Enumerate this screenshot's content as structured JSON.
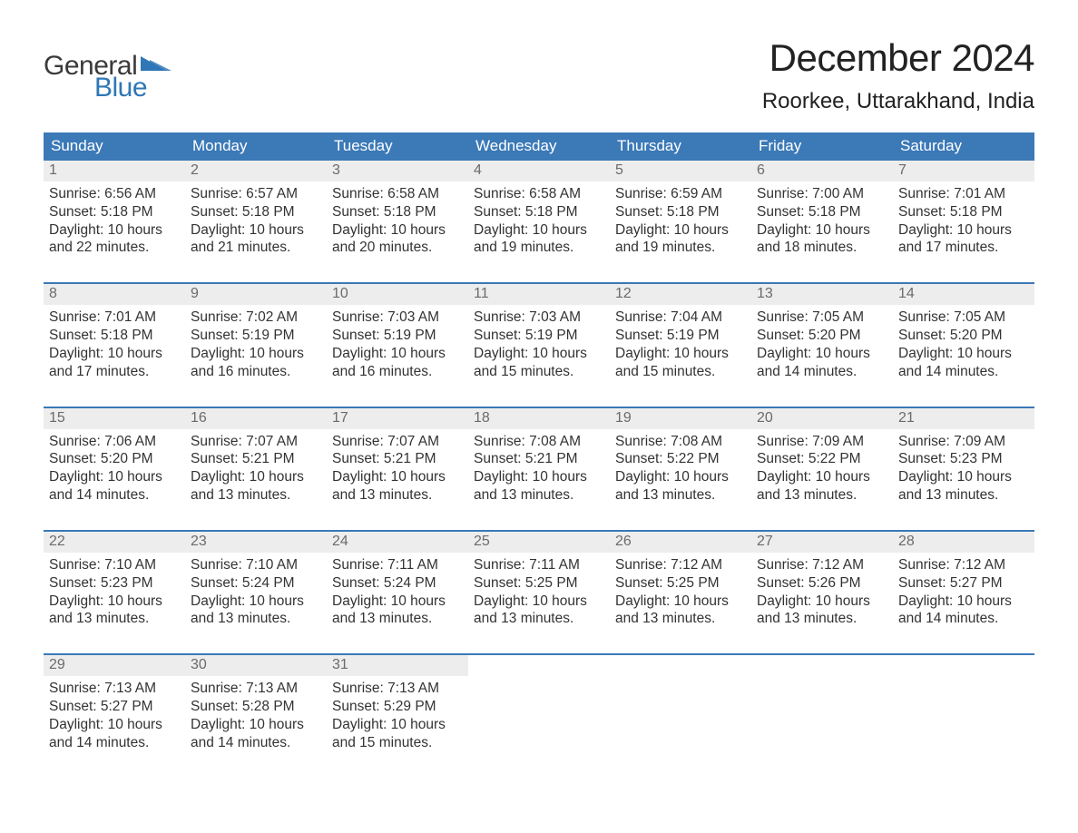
{
  "brand": {
    "word1": "General",
    "word2": "Blue",
    "word1_color": "#3a3a3a",
    "word2_color": "#2f77b6",
    "triangle_color": "#2f77b6"
  },
  "title": "December 2024",
  "location": "Roorkee, Uttarakhand, India",
  "colors": {
    "header_bg": "#3b79b7",
    "header_text": "#ffffff",
    "daynum_bg": "#ededed",
    "daynum_text": "#6b6b6b",
    "week_border": "#3b79b7",
    "body_text": "#333333",
    "page_bg": "#ffffff"
  },
  "weekdays": [
    "Sunday",
    "Monday",
    "Tuesday",
    "Wednesday",
    "Thursday",
    "Friday",
    "Saturday"
  ],
  "days": [
    {
      "n": "1",
      "sunrise": "Sunrise: 6:56 AM",
      "sunset": "Sunset: 5:18 PM",
      "daylight1": "Daylight: 10 hours",
      "daylight2": "and 22 minutes."
    },
    {
      "n": "2",
      "sunrise": "Sunrise: 6:57 AM",
      "sunset": "Sunset: 5:18 PM",
      "daylight1": "Daylight: 10 hours",
      "daylight2": "and 21 minutes."
    },
    {
      "n": "3",
      "sunrise": "Sunrise: 6:58 AM",
      "sunset": "Sunset: 5:18 PM",
      "daylight1": "Daylight: 10 hours",
      "daylight2": "and 20 minutes."
    },
    {
      "n": "4",
      "sunrise": "Sunrise: 6:58 AM",
      "sunset": "Sunset: 5:18 PM",
      "daylight1": "Daylight: 10 hours",
      "daylight2": "and 19 minutes."
    },
    {
      "n": "5",
      "sunrise": "Sunrise: 6:59 AM",
      "sunset": "Sunset: 5:18 PM",
      "daylight1": "Daylight: 10 hours",
      "daylight2": "and 19 minutes."
    },
    {
      "n": "6",
      "sunrise": "Sunrise: 7:00 AM",
      "sunset": "Sunset: 5:18 PM",
      "daylight1": "Daylight: 10 hours",
      "daylight2": "and 18 minutes."
    },
    {
      "n": "7",
      "sunrise": "Sunrise: 7:01 AM",
      "sunset": "Sunset: 5:18 PM",
      "daylight1": "Daylight: 10 hours",
      "daylight2": "and 17 minutes."
    },
    {
      "n": "8",
      "sunrise": "Sunrise: 7:01 AM",
      "sunset": "Sunset: 5:18 PM",
      "daylight1": "Daylight: 10 hours",
      "daylight2": "and 17 minutes."
    },
    {
      "n": "9",
      "sunrise": "Sunrise: 7:02 AM",
      "sunset": "Sunset: 5:19 PM",
      "daylight1": "Daylight: 10 hours",
      "daylight2": "and 16 minutes."
    },
    {
      "n": "10",
      "sunrise": "Sunrise: 7:03 AM",
      "sunset": "Sunset: 5:19 PM",
      "daylight1": "Daylight: 10 hours",
      "daylight2": "and 16 minutes."
    },
    {
      "n": "11",
      "sunrise": "Sunrise: 7:03 AM",
      "sunset": "Sunset: 5:19 PM",
      "daylight1": "Daylight: 10 hours",
      "daylight2": "and 15 minutes."
    },
    {
      "n": "12",
      "sunrise": "Sunrise: 7:04 AM",
      "sunset": "Sunset: 5:19 PM",
      "daylight1": "Daylight: 10 hours",
      "daylight2": "and 15 minutes."
    },
    {
      "n": "13",
      "sunrise": "Sunrise: 7:05 AM",
      "sunset": "Sunset: 5:20 PM",
      "daylight1": "Daylight: 10 hours",
      "daylight2": "and 14 minutes."
    },
    {
      "n": "14",
      "sunrise": "Sunrise: 7:05 AM",
      "sunset": "Sunset: 5:20 PM",
      "daylight1": "Daylight: 10 hours",
      "daylight2": "and 14 minutes."
    },
    {
      "n": "15",
      "sunrise": "Sunrise: 7:06 AM",
      "sunset": "Sunset: 5:20 PM",
      "daylight1": "Daylight: 10 hours",
      "daylight2": "and 14 minutes."
    },
    {
      "n": "16",
      "sunrise": "Sunrise: 7:07 AM",
      "sunset": "Sunset: 5:21 PM",
      "daylight1": "Daylight: 10 hours",
      "daylight2": "and 13 minutes."
    },
    {
      "n": "17",
      "sunrise": "Sunrise: 7:07 AM",
      "sunset": "Sunset: 5:21 PM",
      "daylight1": "Daylight: 10 hours",
      "daylight2": "and 13 minutes."
    },
    {
      "n": "18",
      "sunrise": "Sunrise: 7:08 AM",
      "sunset": "Sunset: 5:21 PM",
      "daylight1": "Daylight: 10 hours",
      "daylight2": "and 13 minutes."
    },
    {
      "n": "19",
      "sunrise": "Sunrise: 7:08 AM",
      "sunset": "Sunset: 5:22 PM",
      "daylight1": "Daylight: 10 hours",
      "daylight2": "and 13 minutes."
    },
    {
      "n": "20",
      "sunrise": "Sunrise: 7:09 AM",
      "sunset": "Sunset: 5:22 PM",
      "daylight1": "Daylight: 10 hours",
      "daylight2": "and 13 minutes."
    },
    {
      "n": "21",
      "sunrise": "Sunrise: 7:09 AM",
      "sunset": "Sunset: 5:23 PM",
      "daylight1": "Daylight: 10 hours",
      "daylight2": "and 13 minutes."
    },
    {
      "n": "22",
      "sunrise": "Sunrise: 7:10 AM",
      "sunset": "Sunset: 5:23 PM",
      "daylight1": "Daylight: 10 hours",
      "daylight2": "and 13 minutes."
    },
    {
      "n": "23",
      "sunrise": "Sunrise: 7:10 AM",
      "sunset": "Sunset: 5:24 PM",
      "daylight1": "Daylight: 10 hours",
      "daylight2": "and 13 minutes."
    },
    {
      "n": "24",
      "sunrise": "Sunrise: 7:11 AM",
      "sunset": "Sunset: 5:24 PM",
      "daylight1": "Daylight: 10 hours",
      "daylight2": "and 13 minutes."
    },
    {
      "n": "25",
      "sunrise": "Sunrise: 7:11 AM",
      "sunset": "Sunset: 5:25 PM",
      "daylight1": "Daylight: 10 hours",
      "daylight2": "and 13 minutes."
    },
    {
      "n": "26",
      "sunrise": "Sunrise: 7:12 AM",
      "sunset": "Sunset: 5:25 PM",
      "daylight1": "Daylight: 10 hours",
      "daylight2": "and 13 minutes."
    },
    {
      "n": "27",
      "sunrise": "Sunrise: 7:12 AM",
      "sunset": "Sunset: 5:26 PM",
      "daylight1": "Daylight: 10 hours",
      "daylight2": "and 13 minutes."
    },
    {
      "n": "28",
      "sunrise": "Sunrise: 7:12 AM",
      "sunset": "Sunset: 5:27 PM",
      "daylight1": "Daylight: 10 hours",
      "daylight2": "and 14 minutes."
    },
    {
      "n": "29",
      "sunrise": "Sunrise: 7:13 AM",
      "sunset": "Sunset: 5:27 PM",
      "daylight1": "Daylight: 10 hours",
      "daylight2": "and 14 minutes."
    },
    {
      "n": "30",
      "sunrise": "Sunrise: 7:13 AM",
      "sunset": "Sunset: 5:28 PM",
      "daylight1": "Daylight: 10 hours",
      "daylight2": "and 14 minutes."
    },
    {
      "n": "31",
      "sunrise": "Sunrise: 7:13 AM",
      "sunset": "Sunset: 5:29 PM",
      "daylight1": "Daylight: 10 hours",
      "daylight2": "and 15 minutes."
    }
  ],
  "layout": {
    "start_weekday_index": 0,
    "total_cells": 35
  }
}
